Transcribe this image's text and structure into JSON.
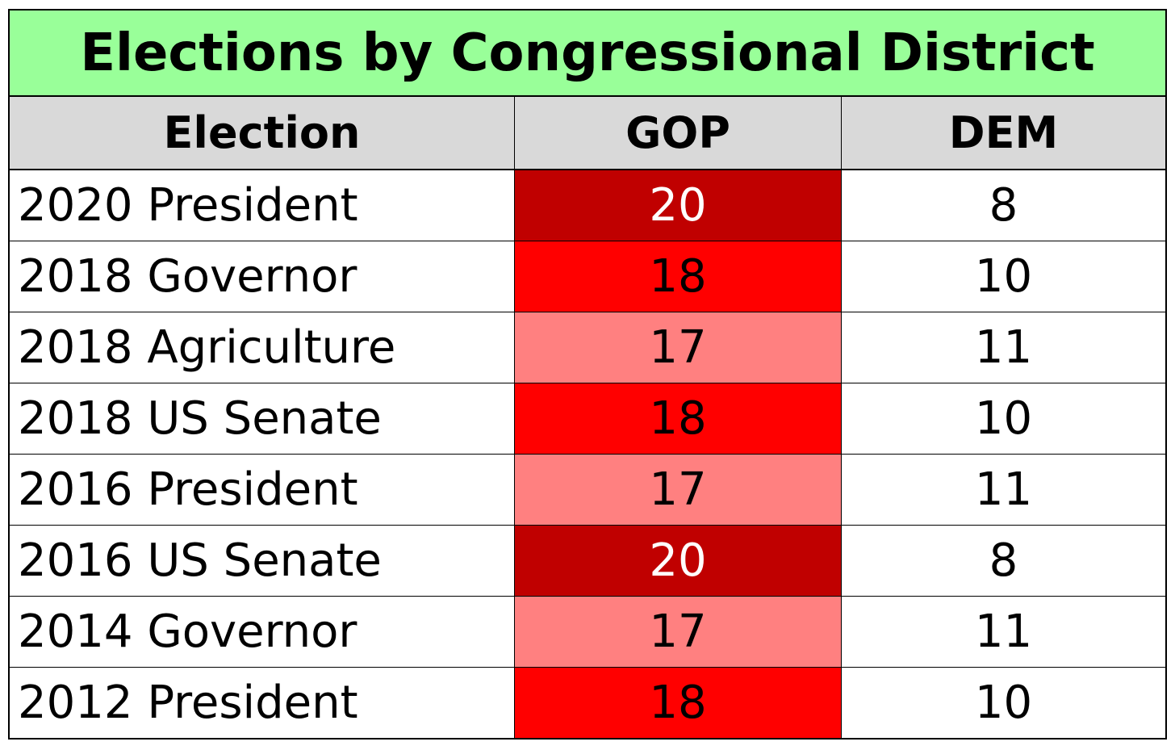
{
  "chart_data": {
    "type": "table",
    "title": "Elections by Congressional District",
    "columns": [
      "Election",
      "GOP",
      "DEM"
    ],
    "rows": [
      {
        "election": "2020 President",
        "gop": "20",
        "dem": "8",
        "gop_color": "#c00000",
        "gop_text_color": "#ffffff"
      },
      {
        "election": "2018 Governor",
        "gop": "18",
        "dem": "10",
        "gop_color": "#ff0000",
        "gop_text_color": "#000000"
      },
      {
        "election": "2018 Agriculture",
        "gop": "17",
        "dem": "11",
        "gop_color": "#ff8080",
        "gop_text_color": "#000000"
      },
      {
        "election": "2018 US Senate",
        "gop": "18",
        "dem": "10",
        "gop_color": "#ff0000",
        "gop_text_color": "#000000"
      },
      {
        "election": "2016 President",
        "gop": "17",
        "dem": "11",
        "gop_color": "#ff8080",
        "gop_text_color": "#000000"
      },
      {
        "election": "2016 US Senate",
        "gop": "20",
        "dem": "8",
        "gop_color": "#c00000",
        "gop_text_color": "#ffffff"
      },
      {
        "election": "2014 Governor",
        "gop": "17",
        "dem": "11",
        "gop_color": "#ff8080",
        "gop_text_color": "#000000"
      },
      {
        "election": "2012 President",
        "gop": "18",
        "dem": "10",
        "gop_color": "#ff0000",
        "gop_text_color": "#000000"
      }
    ],
    "title_background": "#99ff99",
    "header_background": "#d9d9d9"
  }
}
